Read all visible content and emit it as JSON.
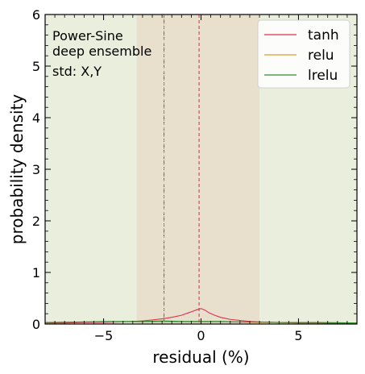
{
  "chart_data": {
    "type": "line",
    "title": "",
    "xlabel": "residual (%)",
    "ylabel": "probability density",
    "xlim": [
      -8,
      8
    ],
    "ylim": [
      0,
      6
    ],
    "x_ticks": [
      -5,
      0,
      5
    ],
    "x_tick_labels": [
      "−5",
      "0",
      "5"
    ],
    "y_ticks": [
      0,
      1,
      2,
      3,
      4,
      5,
      6
    ],
    "y_tick_labels": [
      "0",
      "1",
      "2",
      "3",
      "4",
      "5",
      "6"
    ],
    "grid": false,
    "legend_position": "top-right",
    "annotation_lines": [
      "Power-Sine",
      "deep ensemble",
      "std: X,Y"
    ],
    "background_color": "#e9eedd",
    "shaded_band": {
      "x_range": [
        -3.3,
        3.0
      ],
      "color": "#e8dfcc"
    },
    "vertical_lines": [
      {
        "x": -1.9,
        "color": "#2e8b2e",
        "style": "dashed"
      },
      {
        "x": -1.9,
        "color": "#d4a017",
        "style": "dotted"
      },
      {
        "x": -0.1,
        "color": "#d62b4b",
        "style": "dashed"
      }
    ],
    "series": [
      {
        "name": "tanh",
        "color": "#e0304e",
        "x": [
          -8,
          -7,
          -6,
          -5,
          -4,
          -3.5,
          -3,
          -2.5,
          -2,
          -1.5,
          -1,
          -0.7,
          -0.4,
          -0.2,
          0,
          0.2,
          0.4,
          0.7,
          1,
          1.5,
          2,
          2.5,
          3,
          4,
          5,
          6,
          7,
          8
        ],
        "y": [
          0.02,
          0.02,
          0.03,
          0.03,
          0.04,
          0.05,
          0.06,
          0.08,
          0.1,
          0.13,
          0.17,
          0.21,
          0.25,
          0.28,
          0.3,
          0.27,
          0.22,
          0.17,
          0.13,
          0.09,
          0.07,
          0.05,
          0.04,
          0.03,
          0.02,
          0.02,
          0.01,
          0.01
        ]
      },
      {
        "name": "relu",
        "color": "#d9a030",
        "x": [
          -8,
          -6,
          -4,
          -3,
          -2,
          -1,
          0,
          1,
          2,
          3,
          4,
          6,
          8
        ],
        "y": [
          0.03,
          0.04,
          0.04,
          0.04,
          0.04,
          0.04,
          0.04,
          0.04,
          0.04,
          0.03,
          0.03,
          0.03,
          0.02
        ]
      },
      {
        "name": "lrelu",
        "color": "#2f8f2f",
        "x": [
          -8,
          -6,
          -5,
          -4,
          -3,
          -2,
          -1,
          0,
          1,
          2,
          3,
          4,
          6,
          8
        ],
        "y": [
          0.03,
          0.04,
          0.05,
          0.05,
          0.05,
          0.06,
          0.05,
          0.05,
          0.05,
          0.04,
          0.04,
          0.03,
          0.03,
          0.02
        ]
      }
    ]
  }
}
